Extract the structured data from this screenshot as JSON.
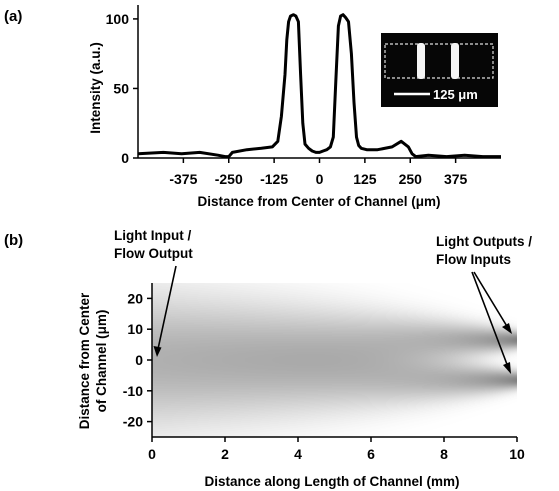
{
  "chart_data": [
    {
      "panel_label": "(a)",
      "type": "line",
      "xlabel": "Distance from Center of Channel (μm)",
      "ylabel": "Intensity (a.u.)",
      "xlim": [
        -500,
        500
      ],
      "ylim": [
        0,
        110
      ],
      "xticks": [
        -375,
        -250,
        -125,
        0,
        125,
        250,
        375
      ],
      "yticks": [
        0,
        50,
        100
      ],
      "grid": false,
      "series": [
        {
          "x": [
            -500,
            -430,
            -380,
            -330,
            -280,
            -260,
            -250,
            -240,
            -200,
            -160,
            -130,
            -115,
            -105,
            -95,
            -90,
            -85,
            -80,
            -72,
            -65,
            -58,
            -52,
            -46,
            -40,
            -30,
            -20,
            -10,
            0,
            10,
            20,
            30,
            38,
            45,
            52,
            58,
            65,
            72,
            80,
            88,
            95,
            102,
            108,
            115,
            130,
            160,
            200,
            225,
            245,
            255,
            265,
            300,
            350,
            400,
            450,
            500
          ],
          "y": [
            3,
            4,
            3,
            4,
            2,
            1,
            1,
            4,
            6,
            7,
            8,
            12,
            30,
            60,
            85,
            98,
            102,
            103,
            102,
            98,
            60,
            25,
            10,
            7,
            5,
            4,
            4,
            5,
            6,
            8,
            15,
            55,
            95,
            102,
            103,
            101,
            98,
            75,
            40,
            15,
            9,
            7,
            6,
            6,
            8,
            12,
            8,
            3,
            1,
            2,
            1,
            2,
            1,
            1
          ]
        }
      ],
      "inset": {
        "scale_bar_label": "125 μm"
      }
    },
    {
      "panel_label": "(b)",
      "type": "heatmap",
      "xlabel": "Distance along Length of Channel (mm)",
      "ylabel_lines": [
        "Distance from Center",
        "of Channel (μm)"
      ],
      "xlim": [
        0,
        10
      ],
      "ylim": [
        -25,
        25
      ],
      "xticks": [
        0,
        2,
        4,
        6,
        8,
        10
      ],
      "yticks": [
        -20,
        -10,
        0,
        10,
        20
      ],
      "tick_labels_x": [
        "0",
        "2",
        "4",
        "6",
        "8",
        "10"
      ],
      "tick_labels_y": [
        "-20",
        "-10",
        "0",
        "10",
        "20"
      ],
      "sources_um": [
        6.5,
        -6.5
      ],
      "annotations": [
        {
          "lines": [
            "Light Input /",
            "Flow Output"
          ]
        },
        {
          "lines": [
            "Light Outputs /",
            "Flow Inputs"
          ]
        }
      ]
    }
  ]
}
